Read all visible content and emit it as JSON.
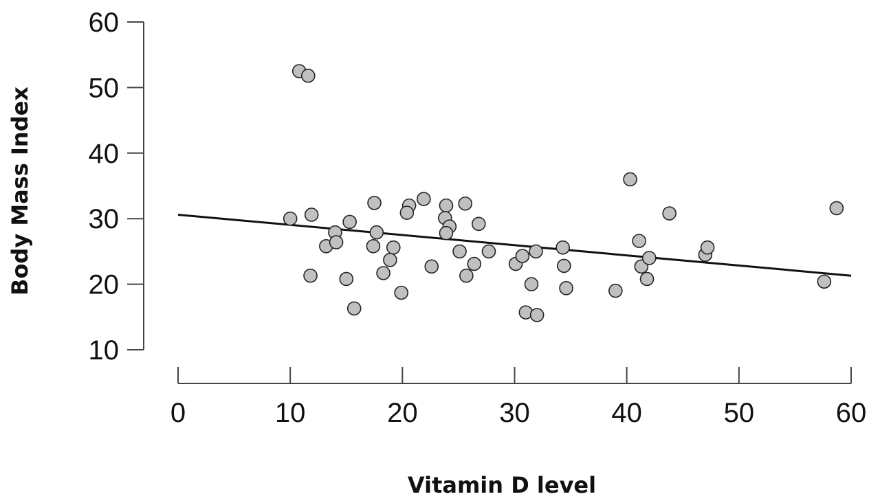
{
  "chart_data": {
    "type": "scatter",
    "xlabel": "Vitamin D level",
    "ylabel": "Body Mass Index",
    "xlim": [
      0,
      60
    ],
    "ylim": [
      10,
      60
    ],
    "x_ticks": [
      0,
      10,
      20,
      30,
      40,
      50,
      60
    ],
    "y_ticks": [
      10,
      20,
      30,
      40,
      50,
      60
    ],
    "grid": false,
    "point_color": "#c0c0c0",
    "trendline": {
      "x": [
        0,
        60
      ],
      "y": [
        30.6,
        21.3
      ]
    },
    "points": [
      {
        "x": 10.8,
        "y": 52.5
      },
      {
        "x": 11.6,
        "y": 51.8
      },
      {
        "x": 10.0,
        "y": 30.0
      },
      {
        "x": 11.9,
        "y": 30.6
      },
      {
        "x": 11.8,
        "y": 21.3
      },
      {
        "x": 13.2,
        "y": 25.8
      },
      {
        "x": 14.0,
        "y": 27.9
      },
      {
        "x": 14.1,
        "y": 26.4
      },
      {
        "x": 15.0,
        "y": 20.8
      },
      {
        "x": 15.3,
        "y": 29.5
      },
      {
        "x": 15.7,
        "y": 16.3
      },
      {
        "x": 17.5,
        "y": 32.4
      },
      {
        "x": 17.7,
        "y": 27.9
      },
      {
        "x": 17.4,
        "y": 25.8
      },
      {
        "x": 18.3,
        "y": 21.7
      },
      {
        "x": 18.9,
        "y": 23.7
      },
      {
        "x": 19.2,
        "y": 25.6
      },
      {
        "x": 19.9,
        "y": 18.7
      },
      {
        "x": 20.6,
        "y": 32.0
      },
      {
        "x": 20.4,
        "y": 30.9
      },
      {
        "x": 21.9,
        "y": 33.0
      },
      {
        "x": 22.6,
        "y": 22.7
      },
      {
        "x": 23.9,
        "y": 32.0
      },
      {
        "x": 23.8,
        "y": 30.1
      },
      {
        "x": 24.2,
        "y": 28.8
      },
      {
        "x": 23.9,
        "y": 27.8
      },
      {
        "x": 25.1,
        "y": 25.0
      },
      {
        "x": 25.6,
        "y": 32.3
      },
      {
        "x": 25.7,
        "y": 21.3
      },
      {
        "x": 26.4,
        "y": 23.1
      },
      {
        "x": 26.8,
        "y": 29.2
      },
      {
        "x": 27.7,
        "y": 25.0
      },
      {
        "x": 30.1,
        "y": 23.1
      },
      {
        "x": 30.7,
        "y": 24.3
      },
      {
        "x": 31.0,
        "y": 15.7
      },
      {
        "x": 31.5,
        "y": 20.0
      },
      {
        "x": 31.9,
        "y": 25.0
      },
      {
        "x": 32.0,
        "y": 15.3
      },
      {
        "x": 34.3,
        "y": 25.6
      },
      {
        "x": 34.4,
        "y": 22.8
      },
      {
        "x": 34.6,
        "y": 19.4
      },
      {
        "x": 39.0,
        "y": 19.0
      },
      {
        "x": 40.3,
        "y": 36.0
      },
      {
        "x": 41.1,
        "y": 26.6
      },
      {
        "x": 41.3,
        "y": 22.7
      },
      {
        "x": 41.8,
        "y": 20.8
      },
      {
        "x": 42.0,
        "y": 24.0
      },
      {
        "x": 43.8,
        "y": 30.8
      },
      {
        "x": 47.0,
        "y": 24.5
      },
      {
        "x": 47.2,
        "y": 25.6
      },
      {
        "x": 57.6,
        "y": 20.4
      },
      {
        "x": 58.7,
        "y": 31.6
      }
    ]
  }
}
